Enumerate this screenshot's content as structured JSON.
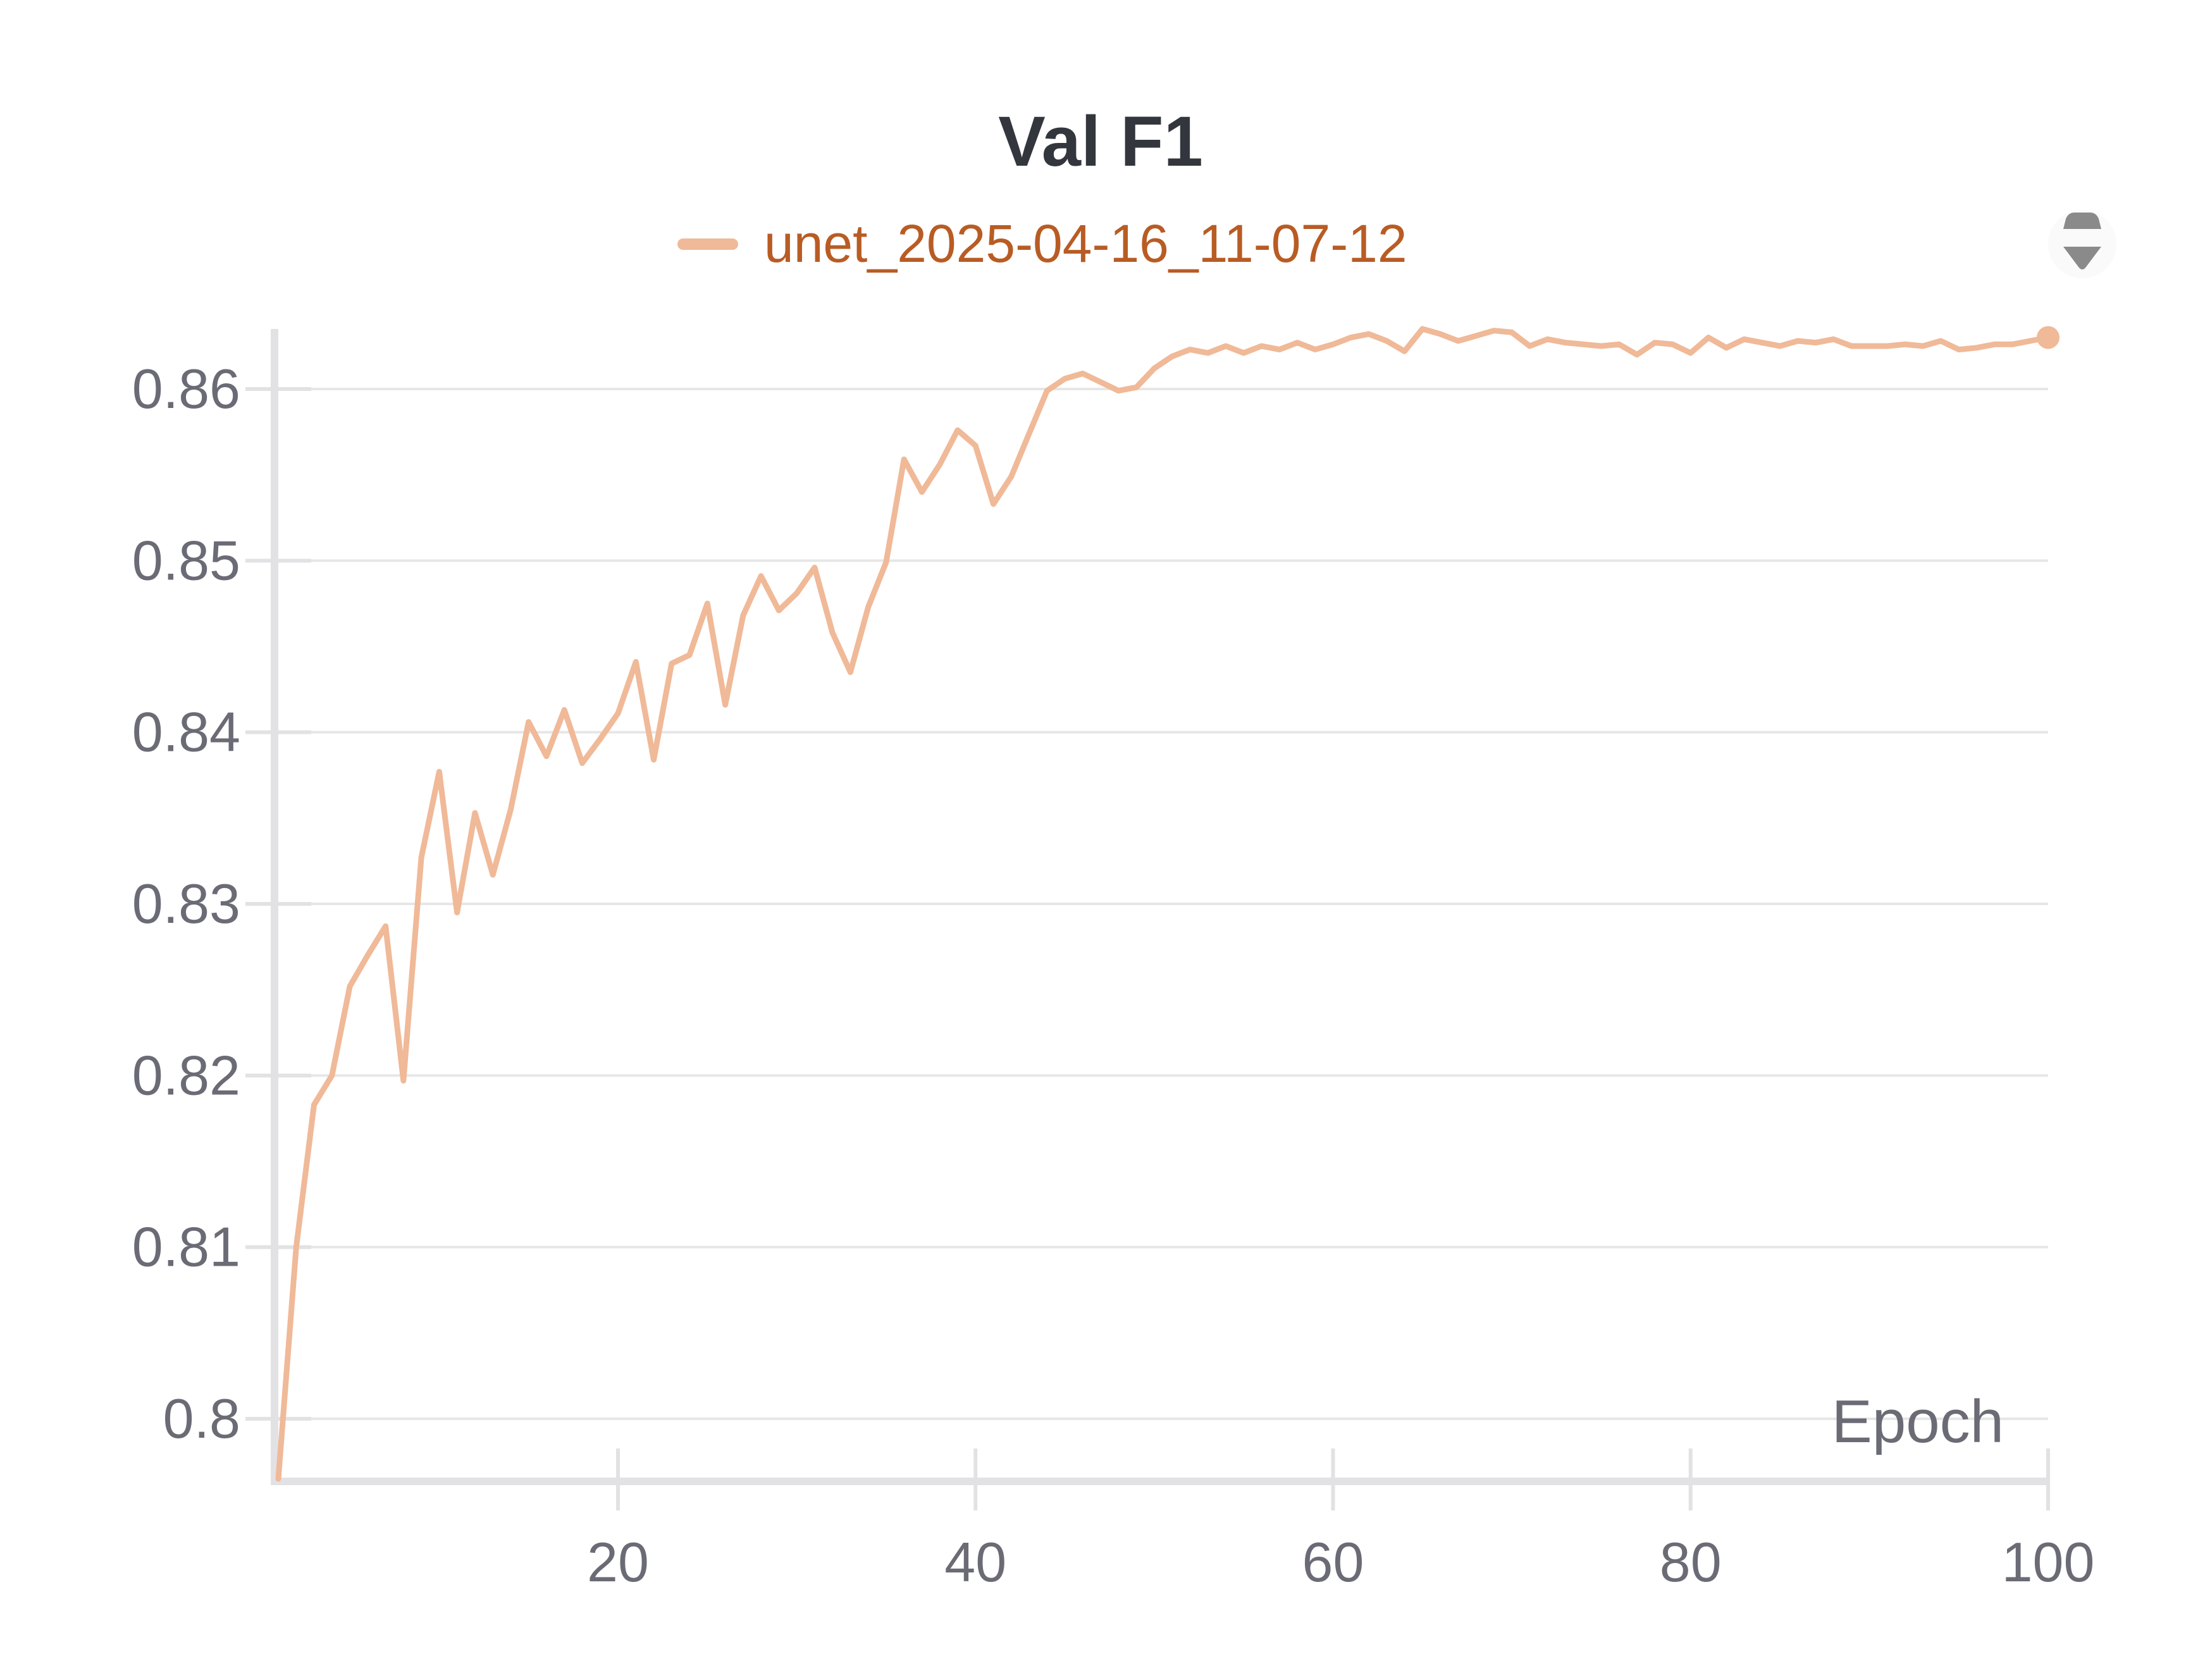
{
  "colors": {
    "series": "#f0b998",
    "legend_text": "#b85c24",
    "grid": "#e6e6e6",
    "axis": "#e2e2e4",
    "text": "#6b6b76",
    "title": "#33373d"
  },
  "scroll_control": {
    "icon": "sort-arrows-icon"
  },
  "chart_data": {
    "type": "line",
    "title": "Val F1",
    "xlabel": "Epoch",
    "ylabel": "",
    "xlim": [
      1,
      100
    ],
    "ylim": [
      0.7965,
      0.8635
    ],
    "xticks": [
      20,
      40,
      60,
      80,
      100
    ],
    "xtick_labels": [
      "20",
      "40",
      "60",
      "80",
      "100"
    ],
    "yticks": [
      0.8,
      0.81,
      0.82,
      0.83,
      0.84,
      0.85,
      0.86
    ],
    "ytick_labels": [
      "0.8",
      "0.81",
      "0.82",
      "0.83",
      "0.84",
      "0.85",
      "0.86"
    ],
    "grid": true,
    "legend_position": "top",
    "series": [
      {
        "name": "unet_2025-04-16_11-07-12",
        "x": [
          1,
          2,
          3,
          4,
          5,
          6,
          7,
          8,
          9,
          10,
          11,
          12,
          13,
          14,
          15,
          16,
          17,
          18,
          19,
          20,
          21,
          22,
          23,
          24,
          25,
          26,
          27,
          28,
          29,
          30,
          31,
          32,
          33,
          34,
          35,
          36,
          37,
          38,
          39,
          40,
          41,
          42,
          43,
          44,
          45,
          46,
          47,
          48,
          49,
          50,
          51,
          52,
          53,
          54,
          55,
          56,
          57,
          58,
          59,
          60,
          61,
          62,
          63,
          64,
          65,
          66,
          67,
          68,
          69,
          70,
          71,
          72,
          73,
          74,
          75,
          76,
          77,
          78,
          79,
          80,
          81,
          82,
          83,
          84,
          85,
          86,
          87,
          88,
          89,
          90,
          91,
          92,
          93,
          94,
          95,
          96,
          97,
          98,
          99,
          100
        ],
        "values": [
          0.7965,
          0.81,
          0.8183,
          0.82,
          0.8252,
          0.827,
          0.8287,
          0.8197,
          0.8327,
          0.8377,
          0.8295,
          0.8353,
          0.8317,
          0.8355,
          0.8406,
          0.8386,
          0.8413,
          0.8382,
          0.8396,
          0.8411,
          0.8441,
          0.8384,
          0.844,
          0.8445,
          0.8475,
          0.8416,
          0.8468,
          0.8491,
          0.8471,
          0.8481,
          0.8496,
          0.8458,
          0.8435,
          0.8473,
          0.8499,
          0.8559,
          0.854,
          0.8556,
          0.8576,
          0.8567,
          0.8533,
          0.8549,
          0.8574,
          0.8599,
          0.8606,
          0.8609,
          0.8604,
          0.8599,
          0.8601,
          0.8612,
          0.8619,
          0.8623,
          0.8621,
          0.8625,
          0.8621,
          0.8625,
          0.8623,
          0.8627,
          0.8623,
          0.8626,
          0.863,
          0.8632,
          0.8628,
          0.8622,
          0.8635,
          0.8632,
          0.8628,
          0.8631,
          0.8634,
          0.8633,
          0.8625,
          0.8629,
          0.8627,
          0.8626,
          0.8625,
          0.8626,
          0.862,
          0.8627,
          0.8626,
          0.8621,
          0.863,
          0.8624,
          0.8629,
          0.8627,
          0.8625,
          0.8628,
          0.8627,
          0.8629,
          0.8625,
          0.8625,
          0.8625,
          0.8626,
          0.8625,
          0.8628,
          0.8623,
          0.8624,
          0.8626,
          0.8626,
          0.8628,
          0.863
        ]
      }
    ]
  }
}
